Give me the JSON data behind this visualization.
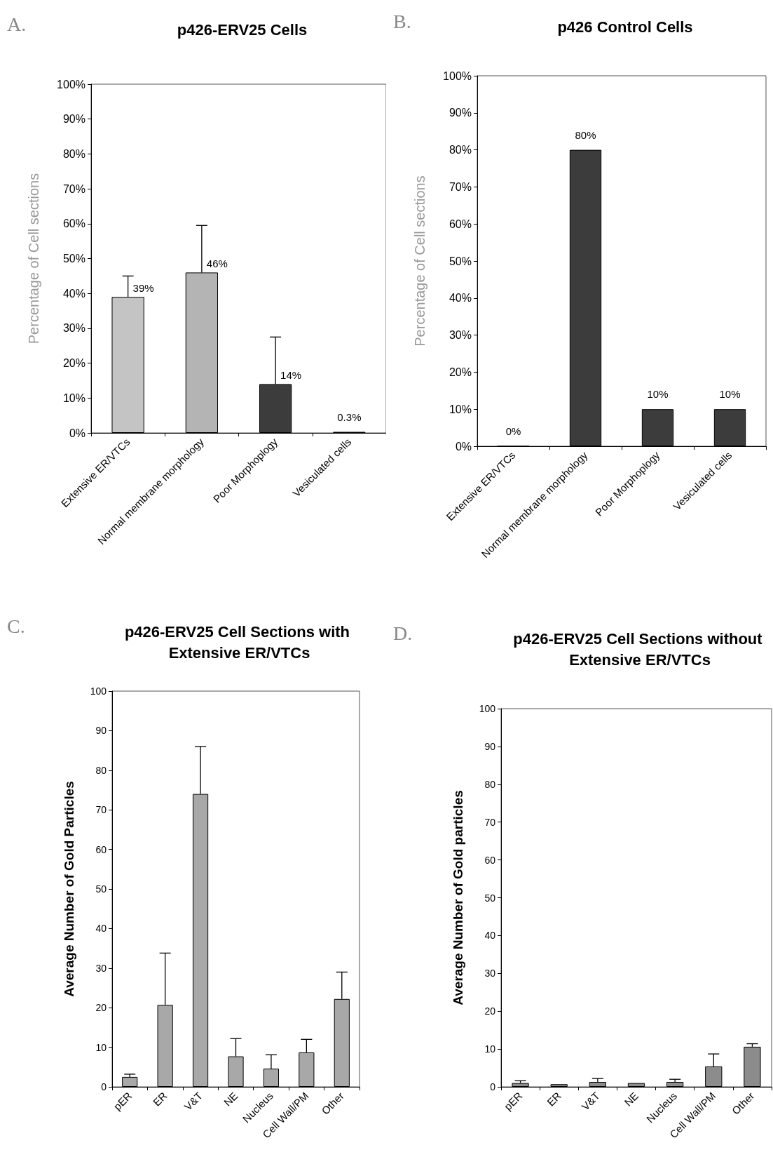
{
  "chart_data": [
    {
      "type": "bar",
      "title": "p426-ERV25 Cells",
      "ylabel": "Percentage of Cell sections",
      "annotations": [
        "A."
      ],
      "categories": [
        "Extensive ER/VTCs",
        "Normal membrane morphology",
        "Poor Morphoplogy",
        "Vesiculated cells"
      ],
      "values": [
        39,
        46,
        14,
        0.3
      ],
      "colors": [
        "#c4c4c4",
        "#b4b4b4",
        "#3c3c3c",
        "#3c3c3c"
      ],
      "errors": [
        [
          39,
          45
        ],
        [
          46,
          59.5
        ],
        [
          14,
          27.5
        ],
        null
      ],
      "value_labels": [
        "39%",
        "46%",
        "14%",
        "0.3%"
      ],
      "ylim": [
        0,
        100
      ],
      "yticks": [
        {
          "value": 0,
          "label": "0%"
        },
        {
          "value": 10,
          "label": "10%"
        },
        {
          "value": 20,
          "label": "20%"
        },
        {
          "value": 30,
          "label": "30%"
        },
        {
          "value": 40,
          "label": "40%"
        },
        {
          "value": 50,
          "label": "50%"
        },
        {
          "value": 60,
          "label": "60%"
        },
        {
          "value": 70,
          "label": "70%"
        },
        {
          "value": 80,
          "label": "80%"
        },
        {
          "value": 90,
          "label": "90%"
        },
        {
          "value": 100,
          "label": "100%"
        }
      ],
      "grid": false
    },
    {
      "type": "bar",
      "title": "p426 Control Cells",
      "ylabel": "Percentage of Cell sections",
      "annotations": [
        "B."
      ],
      "categories": [
        "Extensive ER/VTCs",
        "Normal membrane morphology",
        "Poor Morphoplogy",
        "Vesiculated cells"
      ],
      "values": [
        0,
        80,
        10,
        10
      ],
      "colors": [
        "#3c3c3c",
        "#3c3c3c",
        "#3c3c3c",
        "#3c3c3c"
      ],
      "value_labels": [
        "0%",
        "80%",
        "10%",
        "10%"
      ],
      "ylim": [
        0,
        100
      ],
      "yticks": [
        {
          "value": 0,
          "label": "0%"
        },
        {
          "value": 10,
          "label": "10%"
        },
        {
          "value": 20,
          "label": "20%"
        },
        {
          "value": 30,
          "label": "30%"
        },
        {
          "value": 40,
          "label": "40%"
        },
        {
          "value": 50,
          "label": "50%"
        },
        {
          "value": 60,
          "label": "60%"
        },
        {
          "value": 70,
          "label": "70%"
        },
        {
          "value": 80,
          "label": "80%"
        },
        {
          "value": 90,
          "label": "90%"
        },
        {
          "value": 100,
          "label": "100%"
        }
      ],
      "grid": false
    },
    {
      "type": "bar",
      "title": "p426-ERV25 Cell Sections with Extensive ER/VTCs",
      "ylabel": "Average Number of Gold Particles",
      "annotations": [
        "C."
      ],
      "categories": [
        "pER",
        "ER",
        "V&T",
        "NE",
        "Nucleus",
        "Cell Wall/PM",
        "Other"
      ],
      "values": [
        2.5,
        20.7,
        74,
        7.7,
        4.6,
        8.7,
        22.2
      ],
      "color": "#a8a8a8",
      "errors": [
        [
          2.5,
          3.2
        ],
        [
          20.7,
          33.8
        ],
        [
          74,
          86
        ],
        [
          7.7,
          12.2
        ],
        [
          4.6,
          8.1
        ],
        [
          8.7,
          12
        ],
        [
          22.2,
          29
        ]
      ],
      "ylim": [
        0,
        100
      ],
      "yticks": [
        0,
        10,
        20,
        30,
        40,
        50,
        60,
        70,
        80,
        90,
        100
      ],
      "grid": false
    },
    {
      "type": "bar",
      "title": "p426-ERV25 Cell Sections without Extensive ER/VTCs",
      "ylabel": "Average Number of Gold particles",
      "annotations": [
        "D."
      ],
      "categories": [
        "pER",
        "ER",
        "V&T",
        "NE",
        "Nucleus",
        "Cell Wall/PM",
        "Other"
      ],
      "values": [
        1.0,
        0.7,
        1.3,
        1.0,
        1.3,
        5.4,
        10.6
      ],
      "color": "#8c8c8c",
      "errors": [
        [
          1.0,
          1.6
        ],
        null,
        [
          1.3,
          2.2
        ],
        null,
        [
          1.3,
          2.0
        ],
        [
          5.4,
          8.7
        ],
        [
          10.6,
          11.4
        ]
      ],
      "ylim": [
        0,
        100
      ],
      "yticks": [
        0,
        10,
        20,
        30,
        40,
        50,
        60,
        70,
        80,
        90,
        100
      ],
      "grid": false
    }
  ]
}
